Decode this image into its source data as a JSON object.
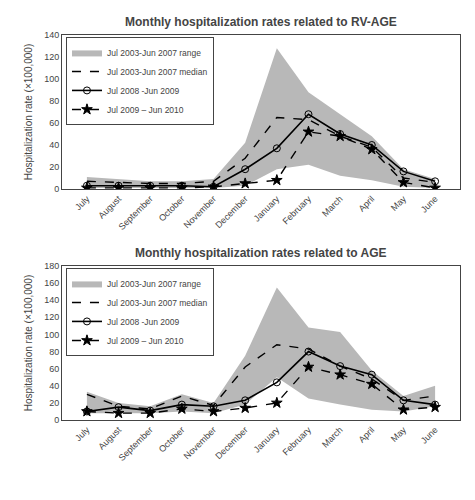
{
  "chart_data": [
    {
      "type": "line",
      "title": "Monthly hospitalization rates related to RV-AGE",
      "y_label": "Hospitalization rate (×100,000)",
      "categories": [
        "July",
        "August",
        "September",
        "October",
        "November",
        "December",
        "January",
        "February",
        "March",
        "April",
        "May",
        "June"
      ],
      "series": [
        {
          "name": "Jul 2003-Jun 2007 range",
          "type": "range",
          "color": "#b8b8b8",
          "low": [
            1,
            1,
            1,
            1,
            1,
            3,
            18,
            22,
            12,
            8,
            2,
            1
          ],
          "high": [
            11,
            9,
            7,
            7,
            9,
            42,
            128,
            88,
            68,
            48,
            18,
            9
          ]
        },
        {
          "name": "Jul 2003-Jun 2007 median",
          "type": "line",
          "color": "#000000",
          "line_style": "dashed",
          "values": [
            7,
            6,
            5,
            5,
            7,
            28,
            65,
            63,
            48,
            38,
            10,
            6
          ]
        },
        {
          "name": "Jul 2008 -Jun 2009",
          "type": "line",
          "color": "#000000",
          "line_style": "solid",
          "marker": "circle-open",
          "values": [
            3,
            3,
            3,
            3,
            2,
            18,
            37,
            68,
            50,
            40,
            16,
            7
          ]
        },
        {
          "name": "Jul 2009 – Jun 2010",
          "type": "line",
          "color": "#000000",
          "line_style": "dashed",
          "marker": "star",
          "values": [
            1,
            1,
            1,
            1,
            2,
            5,
            8,
            52,
            48,
            36,
            6,
            1
          ]
        }
      ],
      "ylim": [
        0,
        140
      ],
      "yticks": [
        0,
        20,
        40,
        60,
        80,
        100,
        120,
        140
      ],
      "grid": false,
      "legend": "upper left"
    },
    {
      "type": "line",
      "title": "Monthly hospitalization rates related to AGE",
      "y_label": "Hospitalization rate (×100,000)",
      "categories": [
        "July",
        "August",
        "September",
        "October",
        "November",
        "December",
        "January",
        "February",
        "March",
        "April",
        "May",
        "June"
      ],
      "series": [
        {
          "name": "Jul 2003-Jun 2007 range",
          "type": "range",
          "color": "#b8b8b8",
          "low": [
            8,
            8,
            8,
            10,
            8,
            18,
            50,
            25,
            18,
            12,
            10,
            16
          ],
          "high": [
            33,
            20,
            16,
            30,
            20,
            75,
            155,
            108,
            103,
            58,
            28,
            40
          ]
        },
        {
          "name": "Jul 2003-Jun 2007 median",
          "type": "line",
          "color": "#000000",
          "line_style": "dashed",
          "values": [
            30,
            16,
            13,
            28,
            17,
            62,
            88,
            83,
            63,
            48,
            23,
            28
          ]
        },
        {
          "name": "Jul 2008 -Jun 2009",
          "type": "line",
          "color": "#000000",
          "line_style": "solid",
          "marker": "circle-open",
          "values": [
            10,
            15,
            11,
            18,
            16,
            23,
            44,
            80,
            63,
            53,
            23,
            18
          ]
        },
        {
          "name": "Jul 2009 – Jun 2010",
          "type": "line",
          "color": "#000000",
          "line_style": "dashed",
          "marker": "star",
          "values": [
            10,
            8,
            8,
            13,
            10,
            14,
            20,
            62,
            53,
            42,
            12,
            15
          ]
        }
      ],
      "ylim": [
        0,
        180
      ],
      "yticks": [
        0,
        20,
        40,
        60,
        80,
        100,
        120,
        140,
        160,
        180
      ],
      "grid": false,
      "legend": "upper left"
    }
  ]
}
